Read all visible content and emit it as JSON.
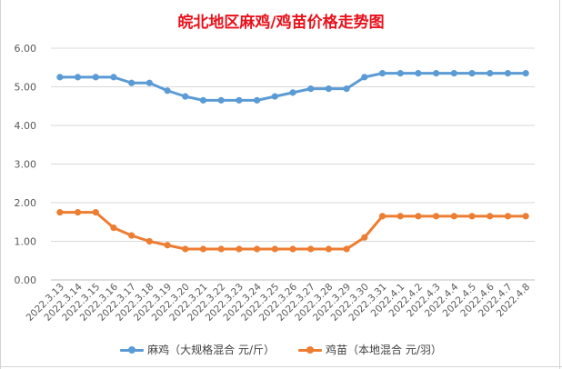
{
  "chart_data": {
    "type": "line",
    "title": "皖北地区麻鸡/鸡苗价格走势图",
    "categories": [
      "2022.3.13",
      "2022.3.14",
      "2022.3.15",
      "2022.3.16",
      "2022.3.17",
      "2022.3.18",
      "2022.3.19",
      "2022.3.20",
      "2022.3.21",
      "2022.3.22",
      "2022.3.23",
      "2022.3.24",
      "2022.3.25",
      "2022.3.26",
      "2022.3.27",
      "2022.3.28",
      "2022.3.29",
      "2022.3.30",
      "2022.3.31",
      "2022.4.1",
      "2022.4.2",
      "2022.4.3",
      "2022.4.4",
      "2022.4.5",
      "2022.4.6",
      "2022.4.7",
      "2022.4.8"
    ],
    "series": [
      {
        "name": "麻鸡（大规格混合 元/斤）",
        "color": "#5b9bd5",
        "values": [
          5.25,
          5.25,
          5.25,
          5.25,
          5.1,
          5.1,
          4.9,
          4.75,
          4.65,
          4.65,
          4.65,
          4.65,
          4.75,
          4.85,
          4.95,
          4.95,
          4.95,
          5.25,
          5.35,
          5.35,
          5.35,
          5.35,
          5.35,
          5.35,
          5.35,
          5.35,
          5.35
        ]
      },
      {
        "name": "鸡苗（本地混合 元/羽）",
        "color": "#ed7d31",
        "values": [
          1.75,
          1.75,
          1.75,
          1.35,
          1.15,
          1.0,
          0.9,
          0.8,
          0.8,
          0.8,
          0.8,
          0.8,
          0.8,
          0.8,
          0.8,
          0.8,
          0.8,
          1.1,
          1.65,
          1.65,
          1.65,
          1.65,
          1.65,
          1.65,
          1.65,
          1.65,
          1.65
        ]
      }
    ],
    "ylim": [
      0,
      6
    ],
    "yticks": [
      "0.00",
      "1.00",
      "2.00",
      "3.00",
      "4.00",
      "5.00",
      "6.00"
    ],
    "grid": true,
    "legend": "bottom"
  }
}
